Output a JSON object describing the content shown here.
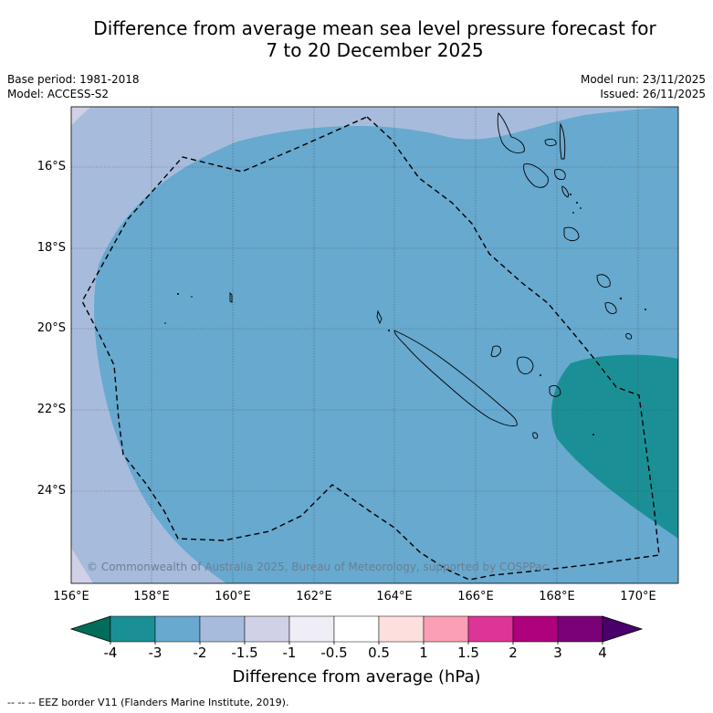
{
  "title_line1": "Difference from average mean sea level pressure forecast for",
  "title_line2": "7 to 20 December 2025",
  "base_period": "Base period: 1981-2018",
  "model": "Model: ACCESS-S2",
  "model_run": "Model run: 23/11/2025",
  "issued": "Issued: 26/11/2025",
  "lat_labels": [
    "16°S",
    "18°S",
    "20°S",
    "22°S",
    "24°S"
  ],
  "lon_labels": [
    "156°E",
    "158°E",
    "160°E",
    "162°E",
    "164°E",
    "166°E",
    "168°E",
    "170°E"
  ],
  "copyright": "© Commonwealth of Australia 2025, Bureau of Meteorology, supported by COSPPac",
  "colorbar": {
    "ticks": [
      "-4",
      "-3",
      "-2",
      "-1.5",
      "-1",
      "-0.5",
      "0.5",
      "1",
      "1.5",
      "2",
      "3",
      "4"
    ],
    "colors": [
      "#1a9096",
      "#67a9cf",
      "#a7bcdc",
      "#d0d1e6",
      "#efedf5",
      "#ffffff",
      "#fde0dd",
      "#fa9fb5",
      "#dd3497",
      "#ae017e",
      "#7a0177"
    ],
    "low_extend_color": "#016c59",
    "high_extend_color": "#49006a",
    "title": "Difference from average (hPa)"
  },
  "footer": "--  --  -- EEZ border V11 (Flanders Marine Institute, 2019)."
}
